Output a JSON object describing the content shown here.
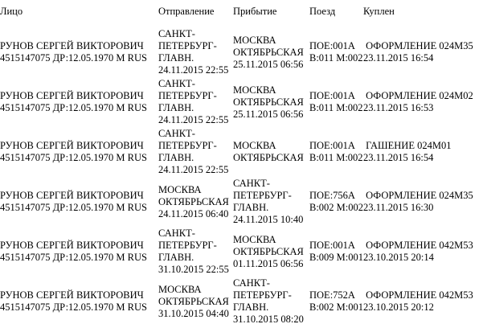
{
  "table": {
    "columns": [
      "Лицо",
      "Отправление",
      "Прибытие",
      "Поезд",
      "Куплен"
    ],
    "rows": [
      {
        "person": "РУНОВ СЕРГЕЙ ВИКТОРОВИЧ\n4515147075 ДР:12.05.1970 М RUS",
        "departure": "САНКТ-\nПЕТЕРБУРГ-\nГЛАВН.\n24.11.2015 22:55",
        "arrival": "МОСКВА\nОКТЯБРЬСКАЯ\n25.11.2015 06:56",
        "train": "ПОЕ:001А\nВ:011 М:002",
        "purchased": " ОФОРМЛЕНИЕ 024М35\n23.11.2015 16:54"
      },
      {
        "person": "РУНОВ СЕРГЕЙ ВИКТОРОВИЧ\n4515147075 ДР:12.05.1970 М RUS",
        "departure": "САНКТ-\nПЕТЕРБУРГ-\nГЛАВН.\n24.11.2015 22:55",
        "arrival": "МОСКВА\nОКТЯБРЬСКАЯ\n25.11.2015 06:56",
        "train": "ПОЕ:001А\nВ:011 М:002",
        "purchased": " ОФОРМЛЕНИЕ 024М02\n23.11.2015 16:53"
      },
      {
        "person": "РУНОВ СЕРГЕЙ ВИКТОРОВИЧ\n4515147075 ДР:12.05.1970 М RUS",
        "departure": "САНКТ-\nПЕТЕРБУРГ-\nГЛАВН.\n24.11.2015 22:55",
        "arrival": "МОСКВА\nОКТЯБРЬСКАЯ",
        "train": "ПОЕ:001А\nВ:011 М:002",
        "purchased": " ГАШЕНИЕ 024М01\n23.11.2015 16:54"
      },
      {
        "person": "РУНОВ СЕРГЕЙ ВИКТОРОВИЧ\n4515147075 ДР:12.05.1970 М RUS",
        "departure": "МОСКВА\nОКТЯБРЬСКАЯ\n24.11.2015 06:40",
        "arrival": "САНКТ-\nПЕТЕРБУРГ-\nГЛАВН.\n24.11.2015 10:40",
        "train": "ПОЕ:756А\nВ:002 М:002",
        "purchased": " ОФОРМЛЕНИЕ 024М35\n23.11.2015 16:30"
      },
      {
        "person": "РУНОВ СЕРГЕЙ ВИКТОРОВИЧ\n4515147075 ДР:12.05.1970 М RUS",
        "departure": "САНКТ-\nПЕТЕРБУРГ-\nГЛАВН.\n31.10.2015 22:55",
        "arrival": "МОСКВА\nОКТЯБРЬСКАЯ\n01.11.2015 06:56",
        "train": "ПОЕ:001А\nВ:009 М:001",
        "purchased": " ОФОРМЛЕНИЕ 042М53\n23.10.2015 20:14"
      },
      {
        "person": "РУНОВ СЕРГЕЙ ВИКТОРОВИЧ\n4515147075 ДР:12.05.1970 М RUS",
        "departure": "МОСКВА\nОКТЯБРЬСКАЯ\n31.10.2015 04:40",
        "arrival": "САНКТ-\nПЕТЕРБУРГ-\nГЛАВН.\n31.10.2015 08:20",
        "train": "ПОЕ:752А\nВ:002 М:001",
        "purchased": " ОФОРМЛЕНИЕ 042М53\n23.10.2015 20:12"
      }
    ]
  }
}
